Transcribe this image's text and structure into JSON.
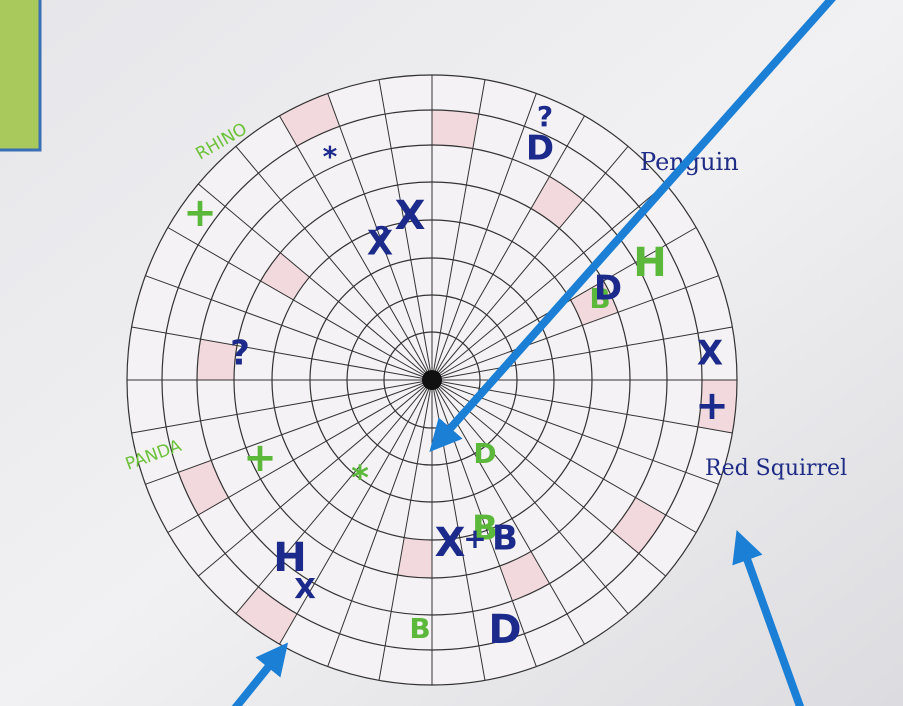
{
  "labels": {
    "penguin": "Penguin",
    "red_squirrel": "Red Squirrel",
    "rhino": "RHINO",
    "panda": "PANDA"
  },
  "symbols": [
    "?",
    "D",
    "X",
    "B",
    "D",
    "H",
    "*",
    "X",
    "+",
    "?",
    "X",
    "+",
    "D",
    "B",
    "X",
    "+",
    "B",
    "D",
    "B",
    "*",
    "H",
    "X",
    "?",
    "+"
  ]
}
